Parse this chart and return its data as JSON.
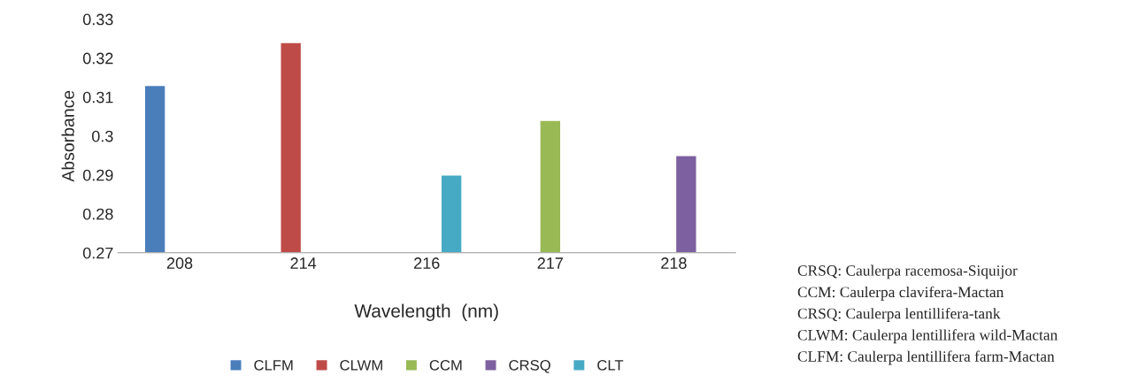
{
  "chart_data": {
    "type": "bar",
    "xlabel": "Wavelength  (nm)",
    "ylabel": "Absorbance",
    "categories": [
      "208",
      "214",
      "216",
      "217",
      "218"
    ],
    "series": [
      {
        "name": "CLFM",
        "color": "#4a7ebb",
        "values": [
          0.313,
          null,
          null,
          null,
          null
        ]
      },
      {
        "name": "CLWM",
        "color": "#be4b48",
        "values": [
          null,
          0.324,
          null,
          null,
          null
        ]
      },
      {
        "name": "CCM",
        "color": "#98b954",
        "values": [
          null,
          null,
          null,
          0.304,
          null
        ]
      },
      {
        "name": "CRSQ",
        "color": "#7d60a0",
        "values": [
          null,
          null,
          null,
          null,
          0.295
        ]
      },
      {
        "name": "CLT",
        "color": "#46aac5",
        "values": [
          null,
          null,
          0.29,
          null,
          null
        ]
      }
    ],
    "ylim": [
      0.27,
      0.33
    ],
    "yticks": [
      0.27,
      0.28,
      0.29,
      0.3,
      0.31,
      0.32,
      0.33
    ],
    "grid": false,
    "legend": "bottom",
    "annotations": [
      "CRSQ: Caulerpa racemosa-Siquijor",
      "CCM: Caulerpa clavifera-Mactan",
      "CRSQ: Caulerpa lentillifera-tank",
      "CLWM: Caulerpa lentillifera wild-Mactan",
      "CLFM: Caulerpa lentillifera farm-Mactan"
    ]
  }
}
